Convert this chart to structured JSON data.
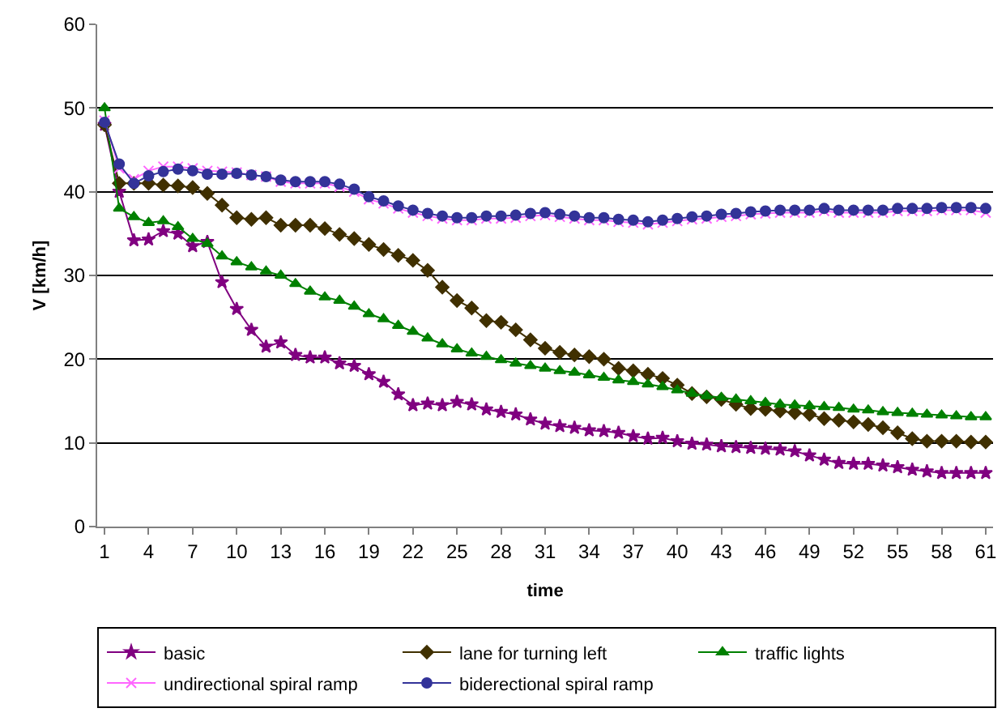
{
  "chart_data": {
    "type": "line",
    "xlabel": "time",
    "ylabel": "V [km/h]",
    "x": [
      1,
      2,
      3,
      4,
      5,
      6,
      7,
      8,
      9,
      10,
      11,
      12,
      13,
      14,
      15,
      16,
      17,
      18,
      19,
      20,
      21,
      22,
      23,
      24,
      25,
      26,
      27,
      28,
      29,
      30,
      31,
      32,
      33,
      34,
      35,
      36,
      37,
      38,
      39,
      40,
      41,
      42,
      43,
      44,
      45,
      46,
      47,
      48,
      49,
      50,
      51,
      52,
      53,
      54,
      55,
      56,
      57,
      58,
      59,
      60,
      61
    ],
    "xlim": [
      0.5,
      61.5
    ],
    "xticks": [
      1,
      4,
      7,
      10,
      13,
      16,
      19,
      22,
      25,
      28,
      31,
      34,
      37,
      40,
      43,
      46,
      49,
      52,
      55,
      58,
      61
    ],
    "ylim": [
      0,
      60
    ],
    "yticks": [
      0,
      10,
      20,
      30,
      40,
      50,
      60
    ],
    "grid": "y",
    "legend": "bottom",
    "series": [
      {
        "name": "basic",
        "color": "#800080",
        "marker": "star",
        "values": [
          48,
          40,
          34.2,
          34.3,
          35.3,
          35,
          33.5,
          34,
          29.2,
          26,
          23.5,
          21.5,
          22,
          20.5,
          20.2,
          20.2,
          19.5,
          19.2,
          18.2,
          17.3,
          15.8,
          14.5,
          14.7,
          14.5,
          14.9,
          14.6,
          14,
          13.7,
          13.4,
          12.8,
          12.3,
          12,
          11.8,
          11.5,
          11.4,
          11.2,
          10.8,
          10.5,
          10.6,
          10.2,
          9.9,
          9.8,
          9.6,
          9.5,
          9.4,
          9.3,
          9.2,
          9,
          8.5,
          8,
          7.6,
          7.5,
          7.5,
          7.3,
          7.1,
          6.8,
          6.6,
          6.4,
          6.4,
          6.4,
          6.4
        ]
      },
      {
        "name": "lane for turning left",
        "color": "#403000",
        "marker": "diamond",
        "values": [
          48,
          41,
          41,
          41,
          40.8,
          40.7,
          40.5,
          39.8,
          38.4,
          36.9,
          36.7,
          36.9,
          36,
          36,
          36,
          35.6,
          34.9,
          34.4,
          33.7,
          33.1,
          32.4,
          31.8,
          30.6,
          28.6,
          27,
          26.1,
          24.6,
          24.4,
          23.5,
          22.3,
          21.3,
          20.8,
          20.5,
          20.3,
          20,
          18.9,
          18.6,
          18.2,
          17.7,
          16.9,
          15.9,
          15.5,
          15.2,
          14.6,
          14.1,
          14,
          13.8,
          13.6,
          13.4,
          12.9,
          12.7,
          12.5,
          12.2,
          11.8,
          11.2,
          10.5,
          10.2,
          10.2,
          10.2,
          10.1,
          10.1
        ]
      },
      {
        "name": "traffic lights",
        "color": "#008000",
        "marker": "triangle",
        "values": [
          50,
          38,
          37,
          36.3,
          36.5,
          35.8,
          34.4,
          33.8,
          32.3,
          31.6,
          31,
          30.5,
          30,
          29,
          28.1,
          27.4,
          27,
          26.3,
          25.4,
          24.8,
          24,
          23.3,
          22.5,
          21.8,
          21.2,
          20.7,
          20.3,
          19.9,
          19.5,
          19.2,
          18.9,
          18.6,
          18.4,
          18.1,
          17.8,
          17.5,
          17.3,
          17,
          16.7,
          16.3,
          15.9,
          15.6,
          15.4,
          15.2,
          15,
          14.8,
          14.6,
          14.5,
          14.4,
          14.3,
          14.2,
          14,
          13.9,
          13.7,
          13.6,
          13.5,
          13.4,
          13.3,
          13.2,
          13.1,
          13.1
        ]
      },
      {
        "name": "undirectional spiral ramp",
        "color": "#ff66ff",
        "marker": "cross",
        "values": [
          48.5,
          42.8,
          41.5,
          42.5,
          43,
          43,
          42.8,
          42.5,
          42.4,
          42.3,
          42,
          41.8,
          41.2,
          41,
          41,
          41,
          40.6,
          40,
          39.1,
          38.6,
          38,
          37.5,
          37.1,
          36.8,
          36.6,
          36.6,
          36.8,
          36.8,
          36.9,
          37.1,
          37.2,
          37,
          36.8,
          36.6,
          36.6,
          36.4,
          36.3,
          36.1,
          36.3,
          36.5,
          36.7,
          36.8,
          37,
          37.1,
          37.3,
          37.4,
          37.5,
          37.5,
          37.5,
          37.7,
          37.5,
          37.5,
          37.5,
          37.5,
          37.7,
          37.7,
          37.7,
          37.8,
          37.8,
          37.8,
          37.5
        ]
      },
      {
        "name": "biderectional spiral ramp",
        "color": "#333399",
        "marker": "circle",
        "values": [
          48.3,
          43.3,
          41,
          41.9,
          42.4,
          42.7,
          42.5,
          42.1,
          42.1,
          42.2,
          42,
          41.8,
          41.4,
          41.2,
          41.2,
          41.2,
          40.9,
          40.3,
          39.4,
          38.9,
          38.3,
          37.8,
          37.4,
          37.1,
          36.9,
          36.9,
          37.1,
          37.1,
          37.2,
          37.4,
          37.5,
          37.3,
          37.1,
          36.9,
          36.9,
          36.7,
          36.6,
          36.4,
          36.6,
          36.8,
          37,
          37.1,
          37.3,
          37.4,
          37.6,
          37.7,
          37.8,
          37.8,
          37.8,
          38,
          37.8,
          37.8,
          37.8,
          37.8,
          38,
          38,
          38,
          38.1,
          38.1,
          38.1,
          38
        ]
      }
    ]
  }
}
